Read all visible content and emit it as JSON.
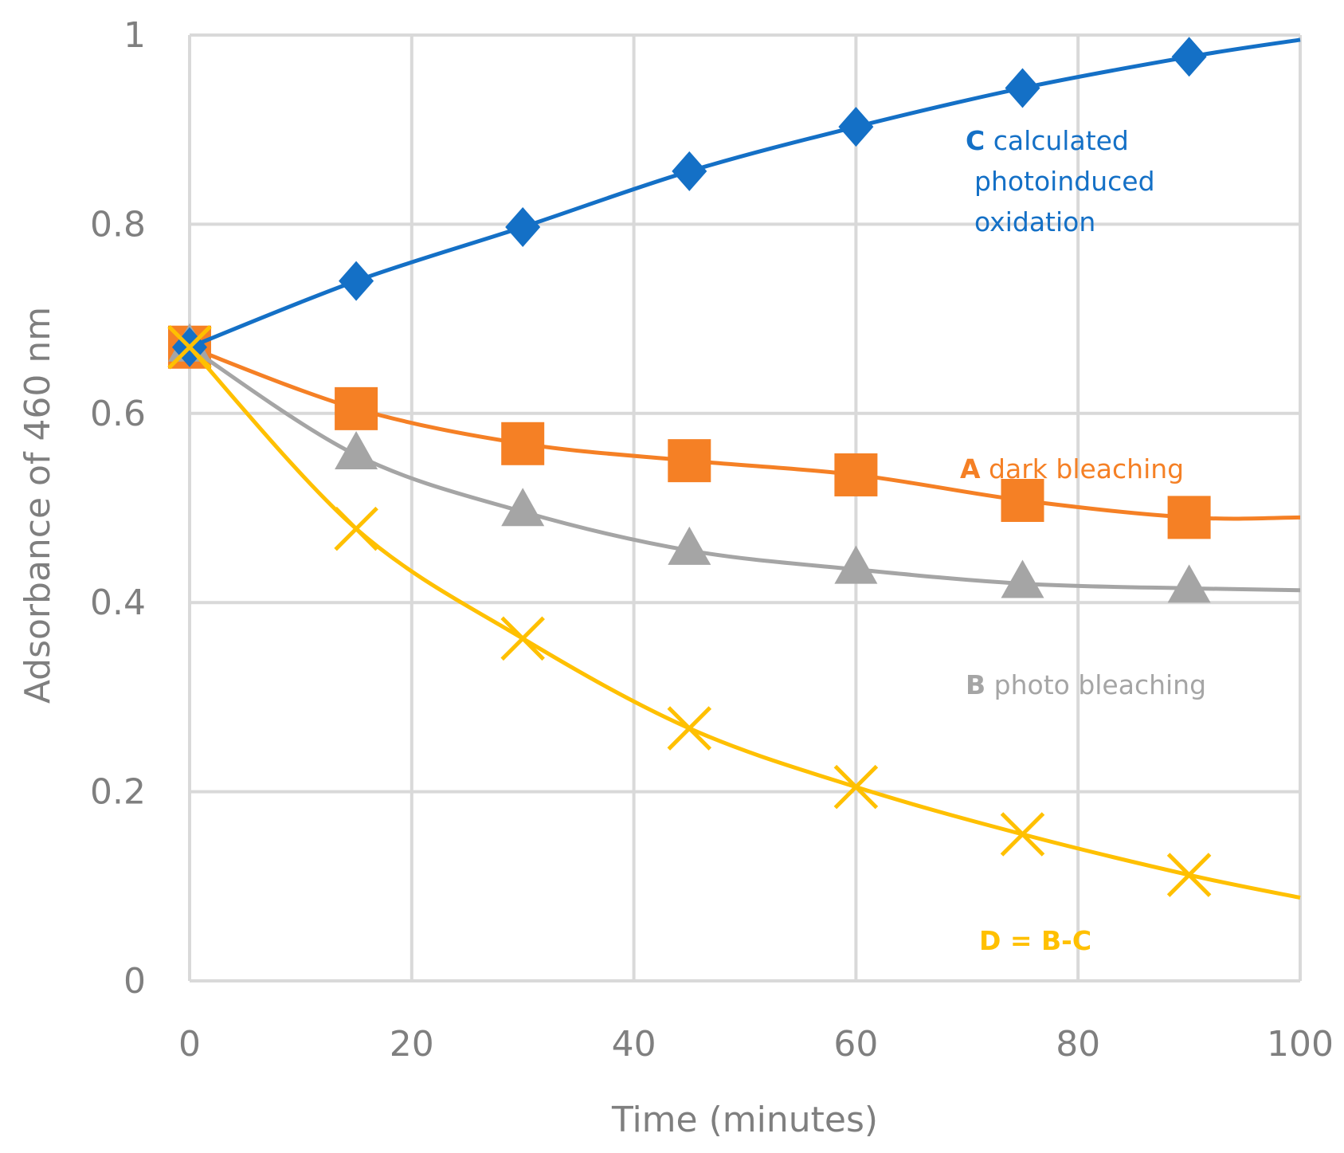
{
  "chart_data": {
    "type": "line",
    "title": "",
    "xlabel": "Time (minutes)",
    "ylabel": "Adsorbance of 460 nm",
    "xlim": [
      0,
      100
    ],
    "ylim": [
      0,
      1
    ],
    "xticks": [
      "0",
      "20",
      "40",
      "60",
      "80",
      "100"
    ],
    "yticks": [
      "0",
      "0.2",
      "0.4",
      "0.6",
      "0.8",
      "1"
    ],
    "grid": true,
    "legend": "none",
    "series": [
      {
        "name": "A dark bleaching",
        "label_bold": "A",
        "label_rest": " dark bleaching",
        "color": "#f58025",
        "marker": "square",
        "x": [
          0,
          15,
          30,
          45,
          60,
          75,
          90
        ],
        "y": [
          0.67,
          0.605,
          0.568,
          0.55,
          0.535,
          0.508,
          0.49
        ],
        "curve_end": [
          100,
          0.49
        ]
      },
      {
        "name": "B photo bleaching",
        "label_bold": "B",
        "label_rest": " photo bleaching",
        "color": "#a5a5a5",
        "marker": "triangle",
        "x": [
          0,
          15,
          30,
          45,
          60,
          75,
          90
        ],
        "y": [
          0.67,
          0.556,
          0.496,
          0.455,
          0.435,
          0.42,
          0.415
        ],
        "curve_end": [
          100,
          0.413
        ]
      },
      {
        "name": "C calculated photoinduced oxidation",
        "label_bold": "C",
        "label_rest": " calculated",
        "label_lines": [
          "photoinduced",
          "oxidation"
        ],
        "color": "#1470c6",
        "marker": "diamond",
        "x": [
          0,
          15,
          30,
          45,
          60,
          75,
          90
        ],
        "y": [
          0.67,
          0.74,
          0.797,
          0.856,
          0.903,
          0.944,
          0.977
        ],
        "curve_end": [
          100,
          0.995
        ]
      },
      {
        "name": "D = B-C",
        "label_bold": "D = B-C",
        "label_rest": "",
        "color": "#ffc000",
        "marker": "x",
        "x": [
          0,
          15,
          30,
          45,
          60,
          75,
          90
        ],
        "y": [
          0.67,
          0.478,
          0.362,
          0.267,
          0.205,
          0.155,
          0.112
        ],
        "curve_end": [
          100,
          0.088
        ]
      }
    ]
  }
}
